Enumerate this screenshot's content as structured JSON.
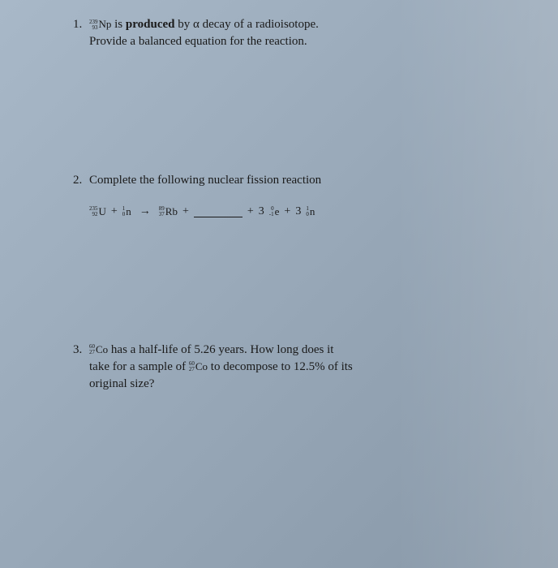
{
  "background_gradient": [
    "#a8b8c8",
    "#98a8b8",
    "#8898a8"
  ],
  "text_color": "#1a1a1a",
  "font_family": "Times New Roman",
  "base_fontsize": 15,
  "isotope_fontsize": 13,
  "isotope_index_fontsize": 7,
  "problems": [
    {
      "number": "1.",
      "isotope": {
        "mass": "239",
        "atomic": "93",
        "symbol": "Np"
      },
      "line1_prefix": "is",
      "line1_bold": "produced",
      "line1_suffix": "by α decay of a radioisotope.",
      "line2": "Provide a balanced equation for the reaction."
    },
    {
      "number": "2.",
      "text": "Complete the following nuclear fission reaction",
      "equation": {
        "reactant1": {
          "mass": "235",
          "atomic": "92",
          "symbol": "U"
        },
        "plus1": "+",
        "reactant2": {
          "mass": "1",
          "atomic": "0",
          "symbol": "n"
        },
        "arrow": "→",
        "product1": {
          "mass": "89",
          "atomic": "37",
          "symbol": "Rb"
        },
        "plus2": "+",
        "blank": "______",
        "plus3": "+",
        "coef1": "3",
        "product2": {
          "mass": "0",
          "atomic": "-1",
          "symbol": "e"
        },
        "plus4": "+",
        "coef2": "3",
        "product3": {
          "mass": "1",
          "atomic": "0",
          "symbol": "n"
        }
      }
    },
    {
      "number": "3.",
      "isotope": {
        "mass": "60",
        "atomic": "27",
        "symbol": "Co"
      },
      "text_part1": "has a half-life of 5.26 years.  How long does it",
      "text_part2a": "take for a sample of",
      "isotope2": {
        "mass": "60",
        "atomic": "27",
        "symbol": "Co"
      },
      "text_part2b": "to decompose to 12.5% of its",
      "text_part3": "original size?"
    }
  ]
}
